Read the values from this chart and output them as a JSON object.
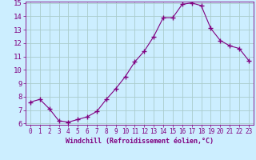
{
  "x": [
    0,
    1,
    2,
    3,
    4,
    5,
    6,
    7,
    8,
    9,
    10,
    11,
    12,
    13,
    14,
    15,
    16,
    17,
    18,
    19,
    20,
    21,
    22,
    23
  ],
  "y": [
    7.6,
    7.8,
    7.1,
    6.2,
    6.1,
    6.3,
    6.5,
    6.9,
    7.8,
    8.6,
    9.5,
    10.6,
    11.4,
    12.5,
    13.9,
    13.9,
    14.9,
    15.0,
    14.8,
    13.1,
    12.2,
    11.8,
    11.6,
    10.7
  ],
  "line_color": "#800080",
  "marker": "+",
  "marker_size": 4,
  "bg_color": "#cceeff",
  "grid_color": "#aacccc",
  "xlabel": "Windchill (Refroidissement éolien,°C)",
  "ylim": [
    6,
    15
  ],
  "xlim": [
    -0.5,
    23.5
  ],
  "yticks": [
    6,
    7,
    8,
    9,
    10,
    11,
    12,
    13,
    14,
    15
  ],
  "xticks": [
    0,
    1,
    2,
    3,
    4,
    5,
    6,
    7,
    8,
    9,
    10,
    11,
    12,
    13,
    14,
    15,
    16,
    17,
    18,
    19,
    20,
    21,
    22,
    23
  ],
  "tick_color": "#800080",
  "label_color": "#800080",
  "spine_color": "#800080",
  "xlabel_fontsize": 6.0,
  "ytick_fontsize": 6.5,
  "xtick_fontsize": 5.5
}
